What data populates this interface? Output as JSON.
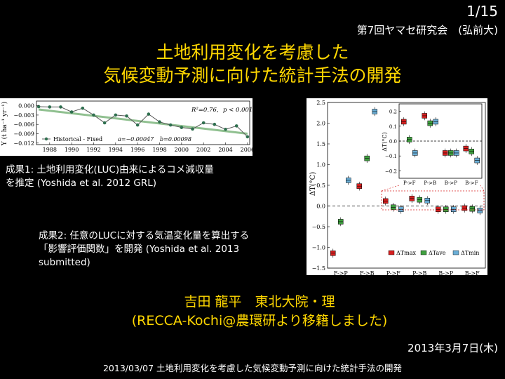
{
  "header": {
    "slide_number": "1/15",
    "conference": "第7回ヤマセ研究会　(弘前大)"
  },
  "title": {
    "line1": "土地利用変化を考慮した",
    "line2": "気候変動予測に向けた統計手法の開発"
  },
  "result1": {
    "line1": "成果1: 土地利用変化(LUC)由来によるコメ減収量",
    "line2": "を推定 (Yoshida et al. 2012 GRL)"
  },
  "result2": {
    "line1": "成果2: 任意のLUCに対する気温変化量を算出する",
    "line2": "「影響評価関数」を開発 (Yoshida et al. 2013",
    "line3": "submitted)"
  },
  "author": {
    "line1": "吉田 龍平　東北大院・理",
    "line2": "(RECCA-Kochi@農環研より移籍しました)"
  },
  "date": "2013年3月7日(木)",
  "footer": "2013/03/07 土地利用変化を考慮した気候変動予測に向けた統計手法の開発",
  "colors": {
    "title": "#ffd700",
    "fit_line": "#90c090",
    "max": "#d62020",
    "ave": "#40a040",
    "min": "#6aaed6"
  },
  "chart_data": [
    {
      "type": "line",
      "ylabel": "Y (t ha⁻¹ yr⁻¹)",
      "x_ticks": [
        "1988",
        "1990",
        "1992",
        "1994",
        "1996",
        "1998",
        "2000",
        "2002",
        "2004",
        "2006"
      ],
      "y_ticks": [
        "0.000",
        "−0.003",
        "−0.006",
        "−0.009",
        "−0.012"
      ],
      "ylim": [
        -0.0125,
        0.0015
      ],
      "xlim": [
        1986.8,
        2006.2
      ],
      "x": [
        1987,
        1988,
        1989,
        1990,
        1991,
        1992,
        1993,
        1994,
        1995,
        1996,
        1997,
        1998,
        1999,
        2000,
        2001,
        2002,
        2003,
        2004,
        2005,
        2006
      ],
      "values": [
        -0.0003,
        -0.0004,
        -0.0004,
        -0.002,
        -0.0008,
        -0.003,
        -0.0055,
        -0.003,
        -0.0033,
        -0.0062,
        -0.0027,
        -0.0052,
        -0.0062,
        -0.007,
        -0.0075,
        -0.0055,
        -0.006,
        -0.0076,
        -0.0065,
        -0.01
      ],
      "fit": {
        "x": [
          1987,
          2006
        ],
        "y": [
          -0.0012,
          -0.009
        ]
      },
      "legend": "Historical - Fixed",
      "annotations": {
        "r2": "R²=0.76,",
        "p": "p < 0.001",
        "a": "a=−0.00047",
        "b": "b=0.00098"
      }
    },
    {
      "type": "box",
      "ylabel": "ΔT(°C)",
      "categories": [
        "F->P",
        "F->B",
        "P->F",
        "P->B",
        "B->P",
        "B->F"
      ],
      "y_ticks": [
        "2.5",
        "2.0",
        "1.5",
        "1.0",
        "0.5",
        "0.0",
        "−0.5",
        "−1.0",
        "−1.5"
      ],
      "ylim": [
        -1.5,
        2.5
      ],
      "series": [
        {
          "name": "ΔTmax",
          "values": [
            -1.14,
            0.48,
            0.12,
            0.18,
            -0.08,
            -0.05
          ]
        },
        {
          "name": "ΔTave",
          "values": [
            -0.38,
            1.15,
            -0.03,
            0.15,
            -0.08,
            -0.07
          ]
        },
        {
          "name": "ΔTmin",
          "values": [
            0.62,
            2.28,
            -0.08,
            0.13,
            -0.08,
            -0.11
          ]
        }
      ],
      "inset": {
        "ylabel": "ΔT(°C)",
        "categories": [
          "P->F",
          "P->B",
          "B->P",
          "B->F"
        ],
        "y_ticks": [
          "0.2",
          "0.1",
          "0.0",
          "−0.1",
          "−0.2"
        ],
        "ylim": [
          -0.25,
          0.25
        ],
        "series": [
          {
            "name": "ΔTmax",
            "values": [
              0.13,
              0.17,
              -0.08,
              -0.05
            ]
          },
          {
            "name": "ΔTave",
            "values": [
              0.01,
              0.12,
              -0.08,
              -0.07
            ]
          },
          {
            "name": "ΔTmin",
            "values": [
              -0.08,
              0.13,
              -0.08,
              -0.13
            ]
          }
        ]
      }
    }
  ]
}
